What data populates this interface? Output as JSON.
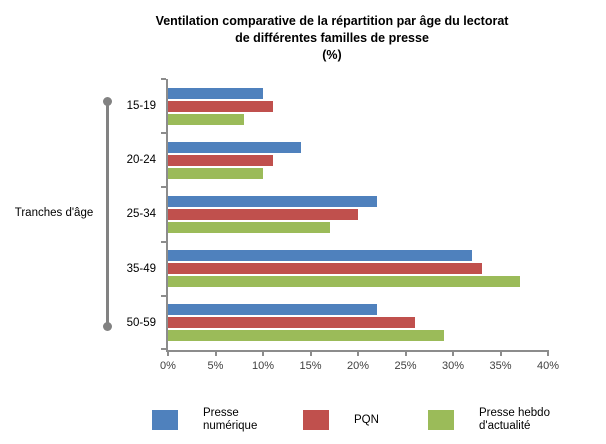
{
  "title": {
    "line1": "Ventilation comparative de la répartition par âge du lectorat",
    "line2": "de différentes familles de presse",
    "line3": "(%)"
  },
  "y_axis_title": "Tranches d'âge",
  "chart_data": {
    "type": "bar",
    "orientation": "horizontal",
    "title": "Ventilation comparative de la répartition par âge du lectorat de différentes familles de presse (%)",
    "categories": [
      "15-19",
      "20-24",
      "25-34",
      "35-49",
      "50-59"
    ],
    "series": [
      {
        "name": "Presse numérique",
        "color": "#4F81BD",
        "values": [
          10,
          14,
          22,
          32,
          22
        ]
      },
      {
        "name": "PQN",
        "color": "#C0504D",
        "values": [
          11,
          11,
          20,
          33,
          26
        ]
      },
      {
        "name": "Presse hebdo d'actualité",
        "color": "#9BBB59",
        "values": [
          8,
          10,
          17,
          37,
          29
        ]
      }
    ],
    "x_axis": {
      "min": 0,
      "max": 40,
      "tick_step": 5,
      "tick_labels": [
        "0%",
        "5%",
        "10%",
        "15%",
        "20%",
        "25%",
        "30%",
        "35%",
        "40%"
      ],
      "unit": "%"
    },
    "ylabel": "Tranches d'âge",
    "grid": false,
    "legend_position": "bottom",
    "axis_color": "#8c8c8c"
  }
}
